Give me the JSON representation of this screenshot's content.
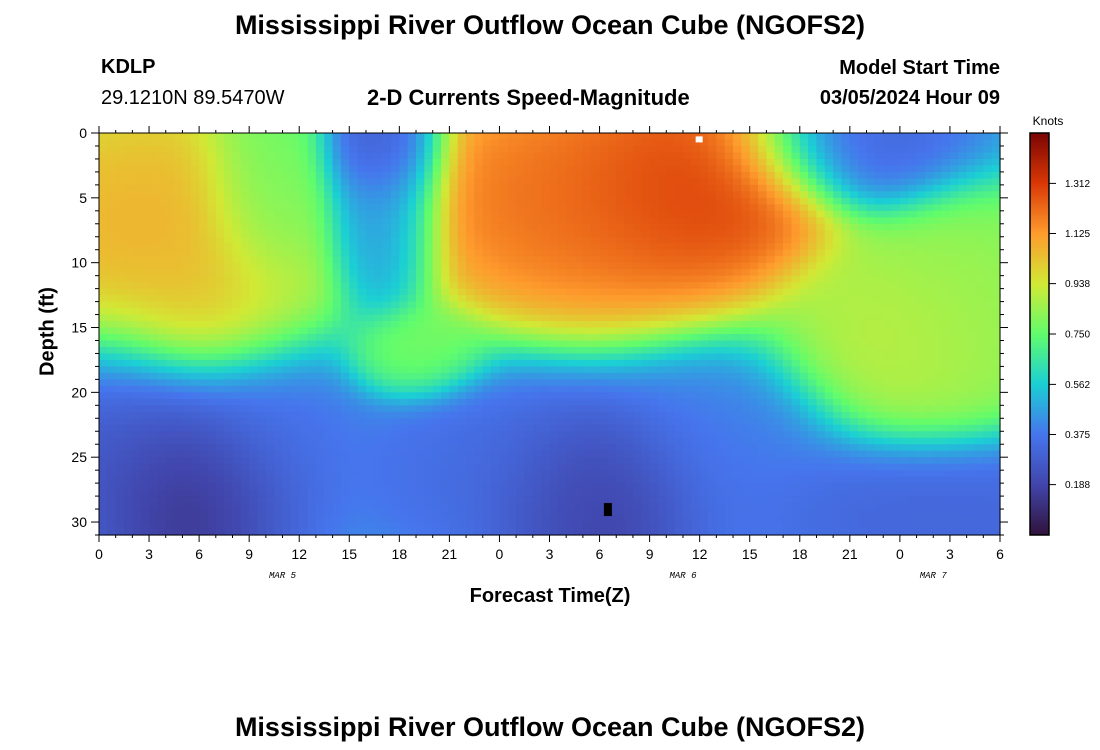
{
  "header": {
    "title": "Mississippi River Outflow Ocean Cube (NGOFS2)",
    "station": "KDLP",
    "coords": "29.1210N  89.5470W",
    "subtitle": "2-D Currents Speed-Magnitude",
    "model_start_label": "Model Start Time",
    "model_start_value": "03/05/2024 Hour 09"
  },
  "footer": {
    "title": "Mississippi River Outflow Ocean Cube (NGOFS2)"
  },
  "chart_data": {
    "type": "heatmap",
    "xlabel": "Forecast Time(Z)",
    "ylabel": "Depth (ft)",
    "x_tick_labels": [
      "0",
      "3",
      "6",
      "9",
      "12",
      "15",
      "18",
      "21",
      "0",
      "3",
      "6",
      "9",
      "12",
      "15",
      "18",
      "21",
      "0",
      "3",
      "6"
    ],
    "x_hour_range": [
      0,
      54
    ],
    "date_labels": [
      {
        "text": "MAR 5",
        "hour": 11
      },
      {
        "text": "MAR 6",
        "hour": 35
      },
      {
        "text": "MAR 7",
        "hour": 50
      }
    ],
    "y_ticks": [
      0,
      5,
      10,
      15,
      20,
      25,
      30
    ],
    "ylim": [
      0,
      31
    ],
    "y_inverted": true,
    "colorbar": {
      "title": "Knots",
      "tick_labels": [
        "0.188",
        "0.375",
        "0.562",
        "0.750",
        "0.938",
        "1.125",
        "1.312"
      ],
      "range": [
        0.0,
        1.5
      ]
    },
    "grid": false,
    "speed_field_blobs": [
      {
        "t": 3,
        "d": 8,
        "v": 1.1,
        "st": 5,
        "sd": 5.5
      },
      {
        "t": 7,
        "d": 13,
        "v": 1.05,
        "st": 3,
        "sd": 3
      },
      {
        "t": 10,
        "d": 5,
        "v": 0.75,
        "st": 2,
        "sd": 5
      },
      {
        "t": 6,
        "d": 28,
        "v": 0.05,
        "st": 3,
        "sd": 3.5
      },
      {
        "t": 2,
        "d": 24,
        "v": 0.25,
        "st": 4,
        "sd": 5
      },
      {
        "t": 10,
        "d": 24,
        "v": 0.35,
        "st": 3,
        "sd": 5
      },
      {
        "t": 17,
        "d": 1,
        "v": 0.2,
        "st": 1.8,
        "sd": 2.5
      },
      {
        "t": 17,
        "d": 6,
        "v": 0.38,
        "st": 1.8,
        "sd": 4
      },
      {
        "t": 19,
        "d": 17,
        "v": 0.8,
        "st": 2,
        "sd": 1.8
      },
      {
        "t": 29,
        "d": 5,
        "v": 1.25,
        "st": 6,
        "sd": 5
      },
      {
        "t": 36,
        "d": 4,
        "v": 1.35,
        "st": 4,
        "sd": 4
      },
      {
        "t": 30,
        "d": 28,
        "v": 0.1,
        "st": 3.5,
        "sd": 3.5
      },
      {
        "t": 24,
        "d": 26,
        "v": 0.33,
        "st": 5,
        "sd": 4
      },
      {
        "t": 37,
        "d": 25,
        "v": 0.38,
        "st": 4,
        "sd": 4
      },
      {
        "t": 46,
        "d": 1,
        "v": 0.3,
        "st": 4,
        "sd": 2.5
      },
      {
        "t": 48,
        "d": 16,
        "v": 0.92,
        "st": 3.5,
        "sd": 4
      },
      {
        "t": 52,
        "d": 13,
        "v": 0.85,
        "st": 3,
        "sd": 5
      },
      {
        "t": 50,
        "d": 29,
        "v": 0.3,
        "st": 7,
        "sd": 3
      }
    ],
    "speed_background": 0.58,
    "surface_max_marker": {
      "t": 36,
      "d": 0.3
    },
    "bottom_min_marker": {
      "t": 30.5,
      "d": 29
    }
  }
}
